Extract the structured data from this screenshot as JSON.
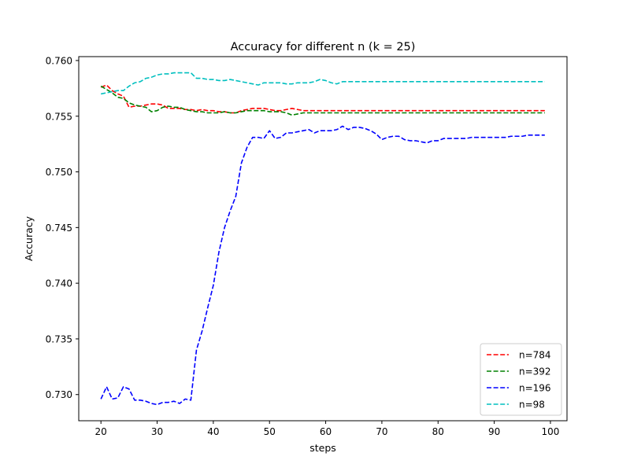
{
  "chart_data": {
    "type": "line",
    "title": "Accuracy for different n (k = 25)",
    "xlabel": "steps",
    "ylabel": "Accuracy",
    "xlim": [
      16.05,
      102.95
    ],
    "ylim": [
      0.72765,
      0.76035
    ],
    "xticks": [
      20,
      30,
      40,
      50,
      60,
      70,
      80,
      90,
      100
    ],
    "xtick_labels": [
      "20",
      "30",
      "40",
      "50",
      "60",
      "70",
      "80",
      "90",
      "100"
    ],
    "yticks": [
      0.73,
      0.735,
      0.74,
      0.745,
      0.75,
      0.755,
      0.76
    ],
    "ytick_labels": [
      "0.730",
      "0.735",
      "0.740",
      "0.745",
      "0.750",
      "0.755",
      "0.760"
    ],
    "grid": false,
    "legend_position": "lower right",
    "line_style": "dashed",
    "x": [
      20,
      21,
      22,
      23,
      24,
      25,
      26,
      27,
      28,
      29,
      30,
      31,
      32,
      33,
      34,
      35,
      36,
      37,
      38,
      39,
      40,
      41,
      42,
      43,
      44,
      45,
      46,
      47,
      48,
      49,
      50,
      51,
      52,
      53,
      54,
      55,
      56,
      57,
      58,
      59,
      60,
      61,
      62,
      63,
      64,
      65,
      66,
      67,
      68,
      69,
      70,
      71,
      72,
      73,
      74,
      75,
      76,
      77,
      78,
      79,
      80,
      81,
      82,
      83,
      84,
      85,
      86,
      87,
      88,
      89,
      90,
      91,
      92,
      93,
      94,
      95,
      96,
      97,
      98,
      99
    ],
    "series": [
      {
        "name": "n=784",
        "color": "#ff0000",
        "values": [
          0.7576,
          0.7578,
          0.7573,
          0.757,
          0.7568,
          0.7558,
          0.7559,
          0.7559,
          0.756,
          0.7561,
          0.7561,
          0.756,
          0.7557,
          0.7557,
          0.7557,
          0.7556,
          0.7556,
          0.7555,
          0.7556,
          0.7555,
          0.7555,
          0.7554,
          0.7554,
          0.7553,
          0.7553,
          0.7555,
          0.7556,
          0.7557,
          0.7557,
          0.7557,
          0.7556,
          0.7555,
          0.7555,
          0.7556,
          0.7557,
          0.7556,
          0.7555,
          0.7555,
          0.7555,
          0.7555,
          0.7555,
          0.7555,
          0.7555,
          0.7555,
          0.7555,
          0.7555,
          0.7555,
          0.7555,
          0.7555,
          0.7555,
          0.7555,
          0.7555,
          0.7555,
          0.7555,
          0.7555,
          0.7555,
          0.7555,
          0.7555,
          0.7555,
          0.7555,
          0.7555,
          0.7555,
          0.7555,
          0.7555,
          0.7555,
          0.7555,
          0.7555,
          0.7555,
          0.7555,
          0.7555,
          0.7555,
          0.7555,
          0.7555,
          0.7555,
          0.7555,
          0.7555,
          0.7555,
          0.7555,
          0.7555,
          0.7555
        ]
      },
      {
        "name": "n=392",
        "color": "#008000",
        "values": [
          0.7577,
          0.7574,
          0.7571,
          0.7567,
          0.7566,
          0.7562,
          0.756,
          0.7559,
          0.7558,
          0.7554,
          0.7555,
          0.7558,
          0.7559,
          0.7558,
          0.7558,
          0.7556,
          0.7555,
          0.7554,
          0.7554,
          0.7553,
          0.7553,
          0.7553,
          0.7554,
          0.7553,
          0.7553,
          0.7554,
          0.7555,
          0.7555,
          0.7555,
          0.7555,
          0.7554,
          0.7554,
          0.7554,
          0.7553,
          0.7551,
          0.7552,
          0.7553,
          0.7553,
          0.7553,
          0.7553,
          0.7553,
          0.7553,
          0.7553,
          0.7553,
          0.7553,
          0.7553,
          0.7553,
          0.7553,
          0.7553,
          0.7553,
          0.7553,
          0.7553,
          0.7553,
          0.7553,
          0.7553,
          0.7553,
          0.7553,
          0.7553,
          0.7553,
          0.7553,
          0.7553,
          0.7553,
          0.7553,
          0.7553,
          0.7553,
          0.7553,
          0.7553,
          0.7553,
          0.7553,
          0.7553,
          0.7553,
          0.7553,
          0.7553,
          0.7553,
          0.7553,
          0.7553,
          0.7553,
          0.7553,
          0.7553,
          0.7553
        ]
      },
      {
        "name": "n=196",
        "color": "#0000ff",
        "values": [
          0.7296,
          0.7307,
          0.7296,
          0.7297,
          0.7307,
          0.7305,
          0.7295,
          0.7295,
          0.7294,
          0.7292,
          0.7291,
          0.7293,
          0.7293,
          0.7294,
          0.7292,
          0.7296,
          0.7295,
          0.734,
          0.7357,
          0.7378,
          0.7398,
          0.7428,
          0.745,
          0.7465,
          0.7478,
          0.7508,
          0.7522,
          0.7531,
          0.7531,
          0.753,
          0.7537,
          0.753,
          0.7531,
          0.7535,
          0.7535,
          0.7536,
          0.7537,
          0.7538,
          0.7535,
          0.7537,
          0.7537,
          0.7537,
          0.7538,
          0.7541,
          0.7538,
          0.754,
          0.754,
          0.7539,
          0.7537,
          0.7534,
          0.7529,
          0.7531,
          0.7532,
          0.7532,
          0.7529,
          0.7528,
          0.7528,
          0.7527,
          0.7526,
          0.7528,
          0.7528,
          0.753,
          0.753,
          0.753,
          0.753,
          0.753,
          0.7531,
          0.7531,
          0.7531,
          0.7531,
          0.7531,
          0.7531,
          0.7531,
          0.7532,
          0.7532,
          0.7532,
          0.7533,
          0.7533,
          0.7533,
          0.7533
        ]
      },
      {
        "name": "n=98",
        "color": "#00bfbf",
        "values": [
          0.757,
          0.7571,
          0.7572,
          0.7573,
          0.7573,
          0.7577,
          0.758,
          0.7581,
          0.7584,
          0.7585,
          0.7587,
          0.7588,
          0.7588,
          0.7589,
          0.7589,
          0.7589,
          0.7589,
          0.7584,
          0.7584,
          0.7583,
          0.7583,
          0.7582,
          0.7582,
          0.7583,
          0.7582,
          0.7581,
          0.758,
          0.7579,
          0.7578,
          0.758,
          0.758,
          0.758,
          0.758,
          0.7579,
          0.7579,
          0.758,
          0.758,
          0.758,
          0.7581,
          0.7583,
          0.7582,
          0.758,
          0.7579,
          0.7581,
          0.7581,
          0.7581,
          0.7581,
          0.7581,
          0.7581,
          0.7581,
          0.7581,
          0.7581,
          0.7581,
          0.7581,
          0.7581,
          0.7581,
          0.7581,
          0.7581,
          0.7581,
          0.7581,
          0.7581,
          0.7581,
          0.7581,
          0.7581,
          0.7581,
          0.7581,
          0.7581,
          0.7581,
          0.7581,
          0.7581,
          0.7581,
          0.7581,
          0.7581,
          0.7581,
          0.7581,
          0.7581,
          0.7581,
          0.7581,
          0.7581,
          0.7581
        ]
      }
    ]
  }
}
